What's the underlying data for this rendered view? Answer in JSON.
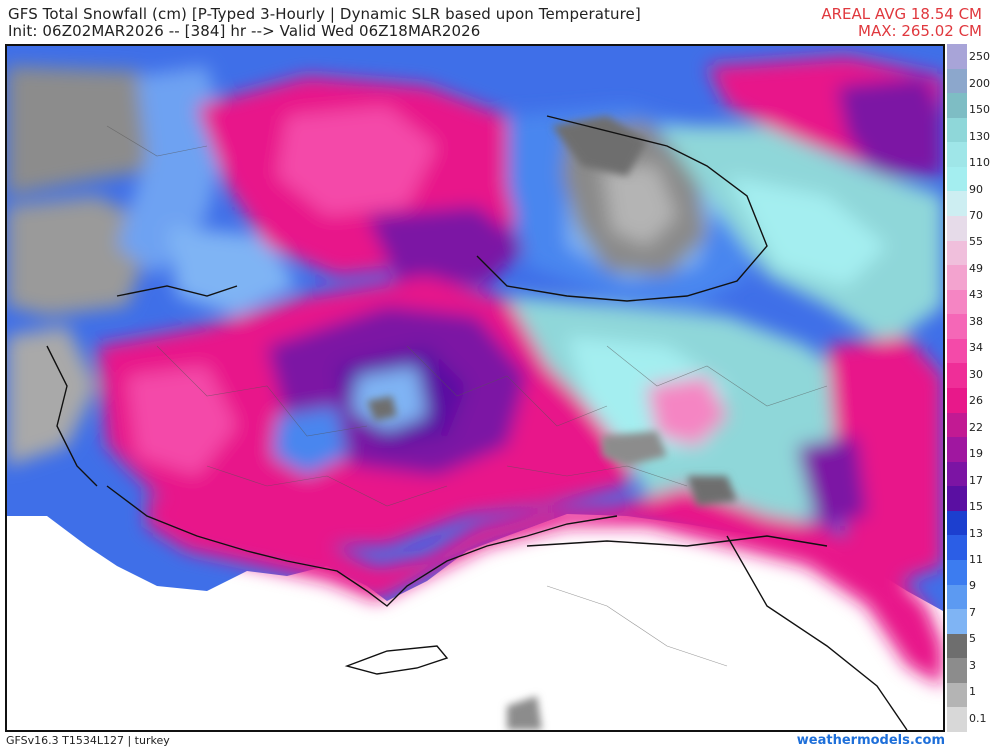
{
  "header": {
    "title_line1": "GFS Total Snowfall (cm) [P-Typed 3-Hourly | Dynamic SLR based upon Temperature]",
    "title_line2": "Init: 06Z02MAR2026 -- [384] hr --> Valid Wed 06Z18MAR2026",
    "areal_avg": "AREAL AVG 18.54 CM",
    "max": "MAX: 265.02 CM"
  },
  "legend": {
    "levels": [
      "250",
      "200",
      "150",
      "130",
      "110",
      "90",
      "70",
      "55",
      "49",
      "43",
      "38",
      "34",
      "30",
      "26",
      "22",
      "19",
      "17",
      "15",
      "13",
      "11",
      "9",
      "7",
      "5",
      "3",
      "1",
      "0.1"
    ],
    "colors": [
      "#a8a4d8",
      "#8ca7cc",
      "#7ebdc4",
      "#8fd7d9",
      "#9fe6e8",
      "#a4eef0",
      "#cdeef2",
      "#e6dbe9",
      "#f0bfdc",
      "#f3a3cf",
      "#f585c3",
      "#f567b7",
      "#f44aa9",
      "#ef2e98",
      "#e8188a",
      "#c21a93",
      "#a017a0",
      "#7c14a4",
      "#5a0fa2",
      "#1c3fcf",
      "#2b5ee6",
      "#3c7cf0",
      "#5c9af2",
      "#7fb4f4",
      "#6e6e6e",
      "#8c8c8c",
      "#b4b4b4",
      "#d8d8d8"
    ]
  },
  "footer": {
    "model": "GFSv16.3 T1534L127 | turkey",
    "credit": "weathermodels.com"
  },
  "colors": {
    "stat_red": "#e0383e",
    "credit_blue": "#1e6fd9"
  }
}
